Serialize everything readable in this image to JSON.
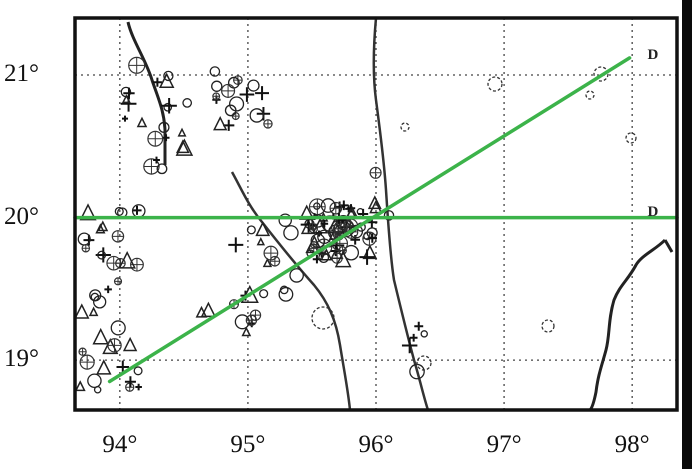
{
  "map": {
    "lon_ticks": [
      {
        "value": 94,
        "label": "94°"
      },
      {
        "value": 95,
        "label": "95°"
      },
      {
        "value": 96,
        "label": "96°"
      },
      {
        "value": 97,
        "label": "97°"
      },
      {
        "value": 98,
        "label": "98°"
      }
    ],
    "lat_ticks": [
      {
        "value": 21,
        "label": "21°"
      },
      {
        "value": 20,
        "label": "20°"
      },
      {
        "value": 19,
        "label": "19°"
      }
    ],
    "extent": {
      "lon": [
        93.65,
        98.35
      ],
      "lat": [
        18.65,
        21.4
      ]
    },
    "grid": "dotted",
    "profile_lines": [
      {
        "name": "D",
        "color": "#3cb34a",
        "from": {
          "lon": 93.92,
          "lat": 18.85
        },
        "to": {
          "lon": 97.98,
          "lat": 21.12
        }
      },
      {
        "name": "D",
        "color": "#3cb34a",
        "from": {
          "lon": 93.65,
          "lat": 20.0
        },
        "to": {
          "lon": 98.35,
          "lat": 20.0
        }
      }
    ],
    "point_labels": [
      {
        "text": "D",
        "lon": 98.12,
        "lat": 21.12
      },
      {
        "text": "D",
        "lon": 98.12,
        "lat": 20.02
      }
    ]
  }
}
